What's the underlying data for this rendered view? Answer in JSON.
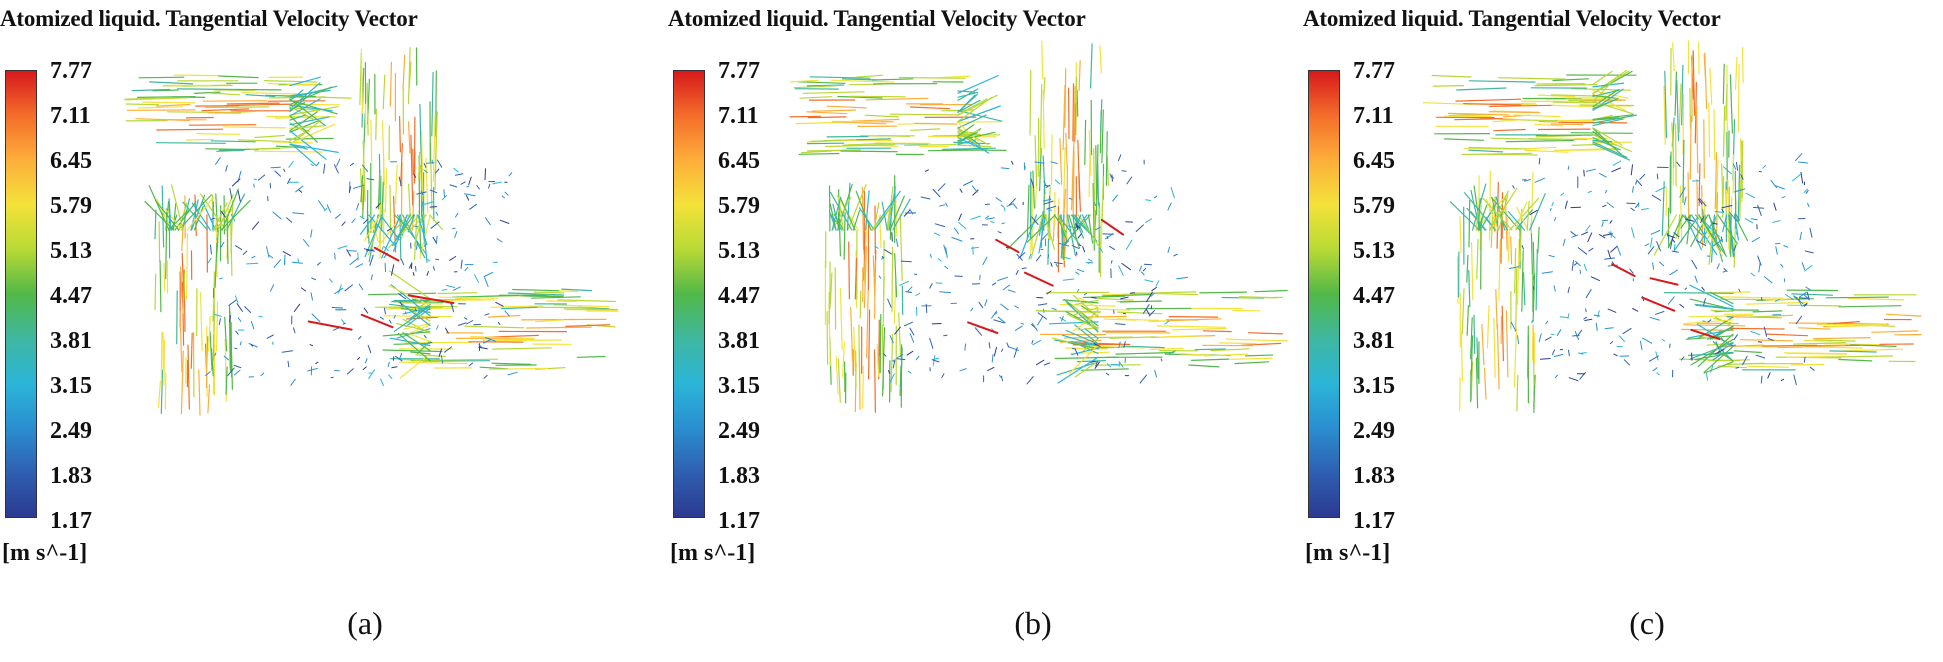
{
  "panels": [
    {
      "id": "a",
      "title": "Atomized liquid. Tangential Velocity Vector",
      "units": "[m s^-1]",
      "caption": "(a)"
    },
    {
      "id": "b",
      "title": "Atomized liquid. Tangential Velocity Vector",
      "units": "[m s^-1]",
      "caption": "(b)"
    },
    {
      "id": "c",
      "title": "Atomized liquid. Tangential Velocity Vector",
      "units": "[m s^-1]",
      "caption": "(c)"
    }
  ],
  "legend": {
    "ticks": [
      "7.77",
      "7.11",
      "6.45",
      "5.79",
      "5.13",
      "4.47",
      "3.81",
      "3.15",
      "2.49",
      "1.83",
      "1.17"
    ],
    "colors": [
      "#d7191c",
      "#f46d2a",
      "#fdae3a",
      "#f4e23a",
      "#b8d935",
      "#52b848",
      "#3fb7a0",
      "#2bb5d8",
      "#2a8fd0",
      "#2f5fb0",
      "#2b3a90"
    ]
  }
}
